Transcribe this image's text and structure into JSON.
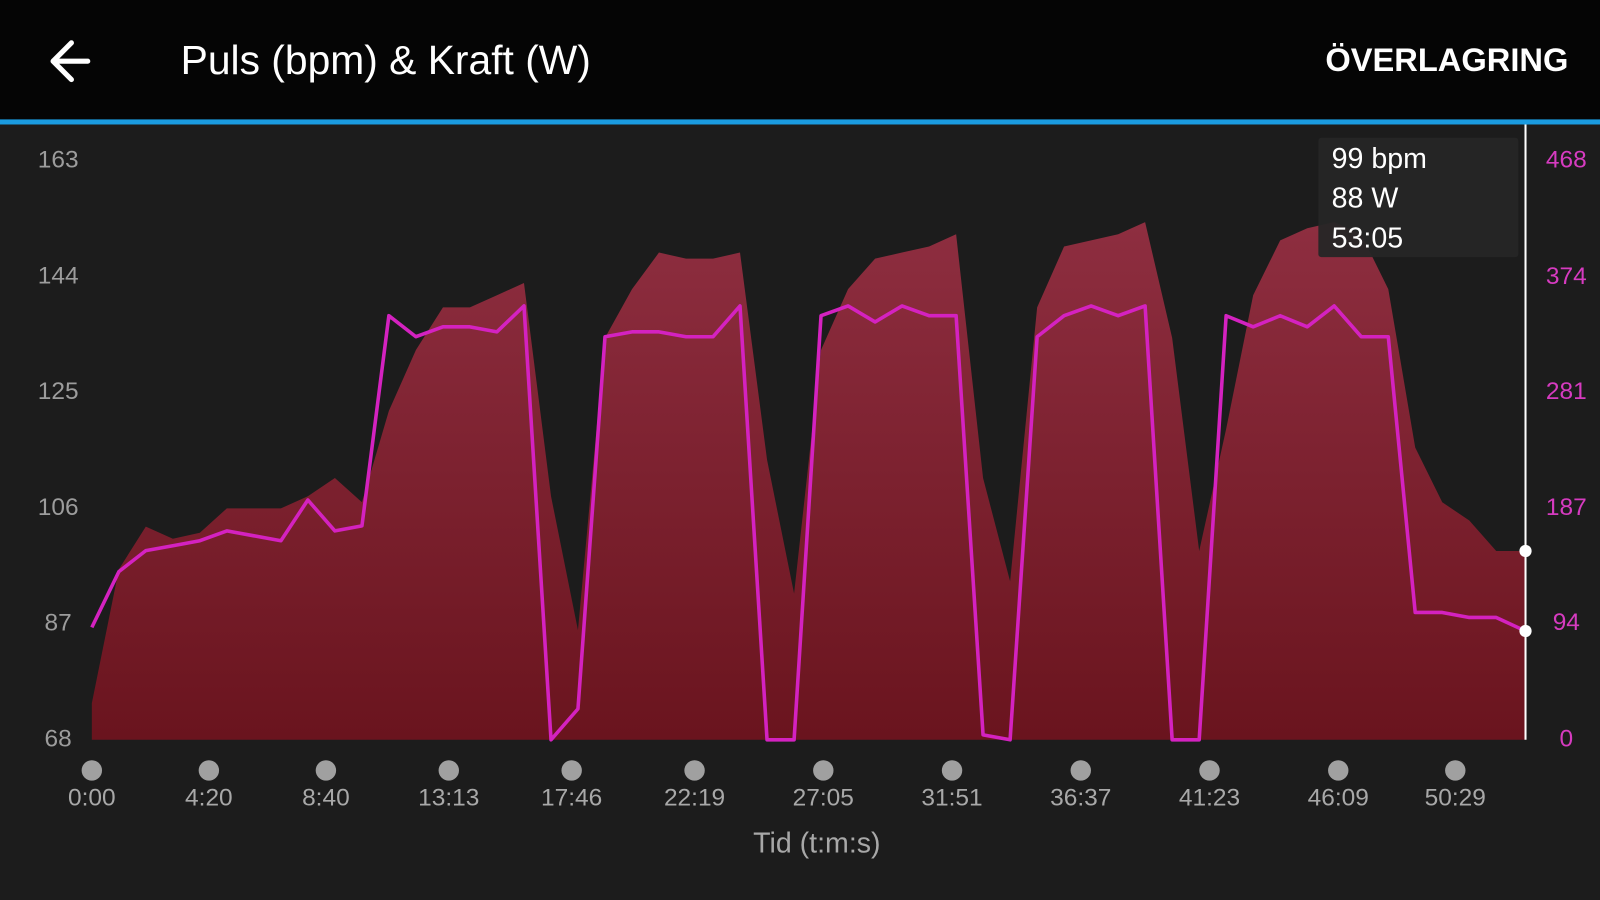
{
  "header": {
    "title": "Puls (bpm) & Kraft (W)",
    "action": "ÖVERLAGRING"
  },
  "chart_data": {
    "type": "combo",
    "xlabel": "Tid (t:m:s)",
    "x": [
      0,
      60,
      120,
      180,
      240,
      300,
      360,
      420,
      480,
      540,
      600,
      660,
      720,
      780,
      840,
      900,
      960,
      1020,
      1080,
      1140,
      1200,
      1260,
      1320,
      1380,
      1440,
      1500,
      1560,
      1620,
      1680,
      1740,
      1800,
      1860,
      1920,
      1980,
      2040,
      2100,
      2160,
      2220,
      2280,
      2340,
      2400,
      2460,
      2520,
      2580,
      2640,
      2700,
      2760,
      2820,
      2880,
      2940,
      3000,
      3060,
      3120,
      3185
    ],
    "xlim": [
      0,
      3185
    ],
    "xticks": [
      {
        "value": 0,
        "label": "0:00"
      },
      {
        "value": 260,
        "label": "4:20"
      },
      {
        "value": 520,
        "label": "8:40"
      },
      {
        "value": 793,
        "label": "13:13"
      },
      {
        "value": 1066,
        "label": "17:46"
      },
      {
        "value": 1339,
        "label": "22:19"
      },
      {
        "value": 1625,
        "label": "27:05"
      },
      {
        "value": 1911,
        "label": "31:51"
      },
      {
        "value": 2197,
        "label": "36:37"
      },
      {
        "value": 2483,
        "label": "41:23"
      },
      {
        "value": 2769,
        "label": "46:09"
      },
      {
        "value": 3029,
        "label": "50:29"
      }
    ],
    "ylim": [
      68,
      163
    ],
    "yticks": [
      68,
      87,
      106,
      125,
      144,
      163
    ],
    "y2lim": [
      0,
      468
    ],
    "y2ticks": [
      0,
      94,
      187,
      281,
      374,
      468
    ],
    "series": [
      {
        "style": "area",
        "color": "#8a2a3c",
        "values": [
          74,
          96,
          103,
          101,
          102,
          106,
          106,
          106,
          108,
          111,
          107,
          122,
          132,
          139,
          139,
          141,
          143,
          108,
          86,
          134,
          142,
          148,
          147,
          147,
          148,
          114,
          92,
          132,
          142,
          147,
          148,
          149,
          151,
          111,
          94,
          139,
          149,
          150,
          151,
          153,
          134,
          99,
          119,
          141,
          150,
          152,
          153,
          151,
          142,
          116,
          107,
          104,
          99,
          99
        ]
      },
      {
        "style": "line",
        "color": "#d422c0",
        "axis": "y2",
        "values": [
          91,
          136,
          153,
          157,
          161,
          169,
          165,
          161,
          194,
          169,
          173,
          343,
          326,
          334,
          334,
          330,
          351,
          0,
          25,
          326,
          330,
          330,
          326,
          326,
          351,
          0,
          0,
          343,
          351,
          338,
          351,
          343,
          343,
          4,
          0,
          326,
          343,
          351,
          343,
          351,
          0,
          0,
          343,
          334,
          343,
          334,
          351,
          326,
          326,
          103,
          103,
          99,
          99,
          88
        ]
      }
    ],
    "tooltip": [
      "99 bpm",
      "88 W",
      "53:05"
    ]
  }
}
